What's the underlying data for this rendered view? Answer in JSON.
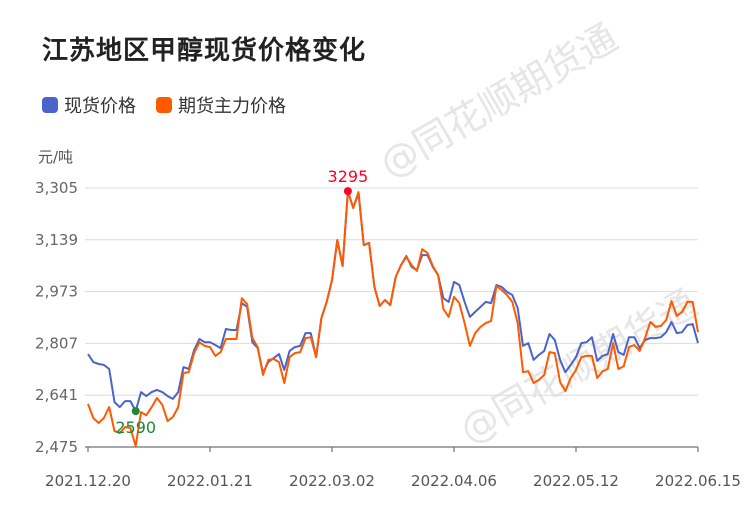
{
  "chart_data": {
    "type": "line",
    "title": "江苏地区甲醇现货价格变化",
    "ylabel": "元/吨",
    "xlabel": "",
    "ylim": [
      2475,
      3305
    ],
    "yticks": [
      "2,475",
      "2,641",
      "2,807",
      "2,973",
      "3,139",
      "3,305"
    ],
    "ytick_values": [
      2475,
      2641,
      2807,
      2973,
      3139,
      3305
    ],
    "xticks": [
      "2021.12.20",
      "2022.01.21",
      "2022.03.02",
      "2022.04.06",
      "2022.05.12",
      "2022.06.15"
    ],
    "grid": true,
    "legend_placement": "top-left",
    "series": [
      {
        "name": "现货价格",
        "color": "#4a64c8",
        "values": [
          2773,
          2747,
          2741,
          2738,
          2725,
          2619,
          2603,
          2622,
          2622,
          2590,
          2651,
          2638,
          2651,
          2658,
          2651,
          2638,
          2629,
          2651,
          2731,
          2725,
          2786,
          2821,
          2811,
          2811,
          2802,
          2792,
          2853,
          2850,
          2850,
          2936,
          2924,
          2811,
          2792,
          2712,
          2747,
          2760,
          2773,
          2722,
          2783,
          2795,
          2799,
          2840,
          2840,
          2763,
          2888,
          2940,
          3010,
          3138,
          3055,
          3295,
          3241,
          3289,
          3122,
          3129,
          2988,
          2927,
          2946,
          2930,
          3020,
          3058,
          3087,
          3052,
          3042,
          3090,
          3090,
          3052,
          3026,
          2952,
          2940,
          3004,
          2994,
          2940,
          2892,
          2908,
          2924,
          2940,
          2936,
          2994,
          2988,
          2972,
          2962,
          2920,
          2799,
          2808,
          2754,
          2770,
          2783,
          2837,
          2818,
          2754,
          2715,
          2738,
          2763,
          2808,
          2811,
          2827,
          2751,
          2767,
          2773,
          2837,
          2779,
          2770,
          2827,
          2827,
          2792,
          2818,
          2824,
          2824,
          2827,
          2843,
          2876,
          2840,
          2843,
          2866,
          2869,
          2808
        ]
      },
      {
        "name": "期货主力价格",
        "color": "#ff5a00",
        "values": [
          2613,
          2568,
          2552,
          2568,
          2603,
          2526,
          2520,
          2539,
          2536,
          2478,
          2587,
          2577,
          2603,
          2632,
          2610,
          2558,
          2571,
          2603,
          2712,
          2715,
          2776,
          2811,
          2799,
          2795,
          2767,
          2779,
          2821,
          2821,
          2821,
          2952,
          2933,
          2824,
          2795,
          2706,
          2754,
          2757,
          2747,
          2680,
          2763,
          2776,
          2779,
          2824,
          2827,
          2763,
          2888,
          2940,
          3010,
          3138,
          3055,
          3295,
          3241,
          3292,
          3122,
          3129,
          2988,
          2927,
          2946,
          2930,
          3020,
          3058,
          3084,
          3058,
          3039,
          3109,
          3097,
          3055,
          3026,
          2917,
          2892,
          2956,
          2936,
          2872,
          2799,
          2840,
          2860,
          2872,
          2879,
          2991,
          2978,
          2962,
          2940,
          2872,
          2715,
          2718,
          2680,
          2690,
          2706,
          2779,
          2776,
          2683,
          2654,
          2696,
          2722,
          2763,
          2767,
          2767,
          2696,
          2718,
          2725,
          2808,
          2725,
          2734,
          2795,
          2802,
          2783,
          2824,
          2876,
          2860,
          2863,
          2882,
          2943,
          2895,
          2908,
          2940,
          2940,
          2843
        ]
      }
    ],
    "annotations": [
      {
        "label": "3295",
        "series": 0,
        "index": 49,
        "value": 3295,
        "color": "#ff0022",
        "kind": "max"
      },
      {
        "label": "2590",
        "series": 0,
        "index": 9,
        "value": 2590,
        "color": "#1a8a3a",
        "kind": "min"
      }
    ],
    "watermark": "@同花顺期货通"
  }
}
